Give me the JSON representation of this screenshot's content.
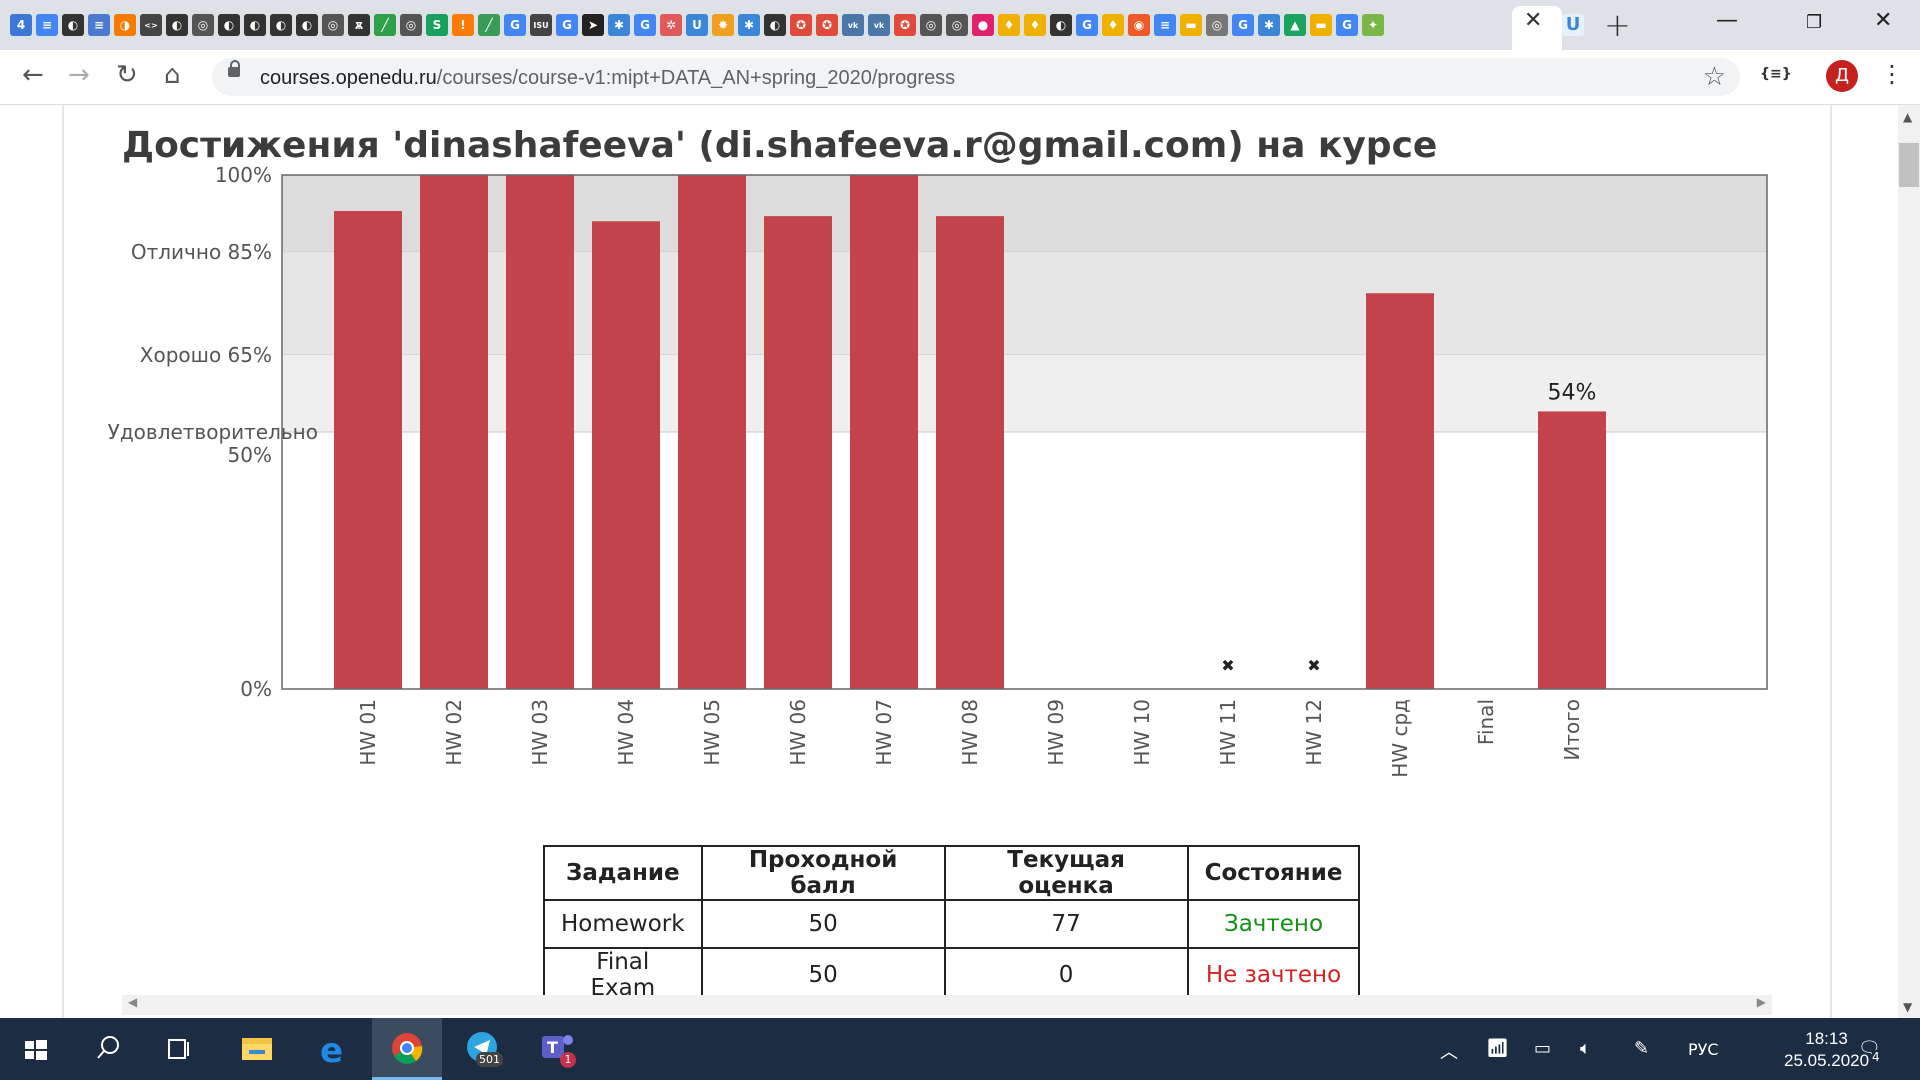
{
  "browser": {
    "url_host": "courses.openedu.ru",
    "url_path": "/courses/course-v1:mipt+DATA_AN+spring_2020/progress",
    "profile_initial": "Д",
    "tab_icon_colors": [
      "#3b78d8",
      "#4285f4",
      "#333333",
      "#4a7bd0",
      "#f57c00",
      "#444444",
      "#333333",
      "#555555",
      "#333333",
      "#333333",
      "#333333",
      "#333333",
      "#555555",
      "#333333",
      "#2e9f4a",
      "#555555",
      "#18a05e",
      "#ff7a00",
      "#3a9a5a",
      "#4285f4",
      "#444444",
      "#4285f4",
      "#222222",
      "#3a86d8",
      "#4285f4",
      "#e05a5a",
      "#3a86d8",
      "#f0a020",
      "#3a86d8",
      "#333333",
      "#e04a3a",
      "#e04a3a",
      "#4a76a8",
      "#4a76a8",
      "#e04a3a",
      "#555555",
      "#555555",
      "#e0206a",
      "#f0b000",
      "#f0b000",
      "#333333",
      "#4285f4",
      "#f0b000",
      "#f05a28",
      "#4285f4",
      "#f0b000",
      "#777777",
      "#4285f4",
      "#3a86d8",
      "#1aa260",
      "#f0b000",
      "#4285f4",
      "#7ab648"
    ],
    "tab_icon_glyphs": [
      "4",
      "≡",
      "◐",
      "≡",
      "◑",
      "<>",
      "◐",
      "◎",
      "◐",
      "◐",
      "◐",
      "◐",
      "◎",
      "ѫ",
      "╱",
      "◎",
      "S",
      "!",
      "╱",
      "G",
      "ISU",
      "G",
      "➤",
      "✱",
      "G",
      "✲",
      "U",
      "✸",
      "✱",
      "◐",
      "✪",
      "✪",
      "vk",
      "vk",
      "✪",
      "◎",
      "◎",
      "●",
      "♦",
      "♦",
      "◐",
      "G",
      "♦",
      "◉",
      "≡",
      "▬",
      "◎",
      "G",
      "✱",
      "▲",
      "▬",
      "G",
      "✦"
    ]
  },
  "page": {
    "title": "Достижения 'dinashafeeva' (di.shafeeva.r@gmail.com) на курсе"
  },
  "chart_data": {
    "type": "bar",
    "ylim": [
      0,
      100
    ],
    "y_ticks": [
      {
        "label": "100%",
        "value": 100
      },
      {
        "label": "Отлично 85%",
        "value": 85
      },
      {
        "label": "Хорошо 65%",
        "value": 65
      },
      {
        "label_line1": "Удовлетворительно",
        "label_line2": "50%",
        "value": 50
      },
      {
        "label": "0%",
        "value": 0
      }
    ],
    "grade_bands": [
      {
        "from": 85,
        "to": 100,
        "color": "#dcdcdc"
      },
      {
        "from": 65,
        "to": 85,
        "color": "#e6e6e6"
      },
      {
        "from": 50,
        "to": 65,
        "color": "#efefef"
      }
    ],
    "categories": [
      "HW 01",
      "HW 02",
      "HW 03",
      "HW 04",
      "HW 05",
      "HW 06",
      "HW 07",
      "HW 08",
      "HW 09",
      "HW 10",
      "HW 11",
      "HW 12",
      "HW срд",
      "Final",
      "Итого"
    ],
    "values": [
      93,
      100,
      100,
      91,
      100,
      92,
      100,
      92,
      0,
      0,
      0,
      0,
      77,
      0,
      54
    ],
    "dropped": [
      false,
      false,
      false,
      false,
      false,
      false,
      false,
      false,
      false,
      false,
      true,
      true,
      false,
      false,
      false
    ],
    "bar_color": "#c2444a",
    "annotations": [
      {
        "category": "Итого",
        "text": "54%"
      }
    ]
  },
  "grades_table": {
    "headers": [
      "Задание",
      "Проходной балл",
      "Текущая оценка",
      "Состояние"
    ],
    "rows": [
      {
        "name": "Homework",
        "pass": "50",
        "current": "77",
        "status": "Зачтено",
        "status_kind": "pass"
      },
      {
        "name": "Final Exam",
        "pass": "50",
        "current": "0",
        "status": "Не зачтено",
        "status_kind": "fail"
      }
    ]
  },
  "taskbar": {
    "telegram_badge": "501",
    "teams_badge": "1",
    "lang": "РУС",
    "time": "18:13",
    "date": "25.05.2020",
    "notifications": "4"
  }
}
